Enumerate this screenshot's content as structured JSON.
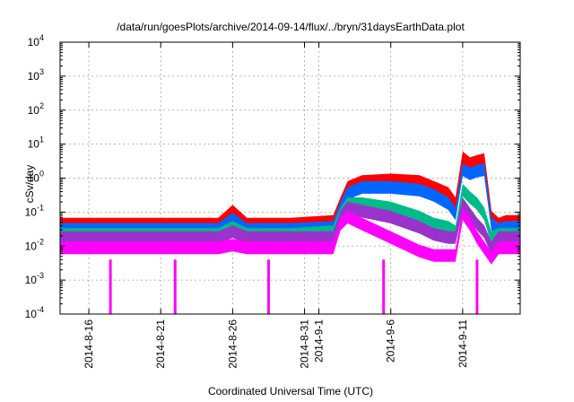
{
  "chart_data": {
    "type": "line",
    "title": "/data/run/goesPlots/archive/2014-09-14/flux/../bryn/31daysEarthData.plot",
    "xlabel": "Coordinated Universal Time (UTC)",
    "ylabel": "cSv/day",
    "y_scale": "log",
    "ylim": [
      0.0001,
      10000
    ],
    "y_ticks": [
      {
        "base": "10",
        "exp": "-4",
        "value": 0.0001
      },
      {
        "base": "10",
        "exp": "-3",
        "value": 0.001
      },
      {
        "base": "10",
        "exp": "-2",
        "value": 0.01
      },
      {
        "base": "10",
        "exp": "-1",
        "value": 0.1
      },
      {
        "base": "10",
        "exp": "0",
        "value": 1
      },
      {
        "base": "10",
        "exp": "1",
        "value": 10
      },
      {
        "base": "10",
        "exp": "2",
        "value": 100
      },
      {
        "base": "10",
        "exp": "3",
        "value": 1000
      },
      {
        "base": "10",
        "exp": "4",
        "value": 10000
      }
    ],
    "xlim": [
      "2014-08-14",
      "2014-09-15"
    ],
    "x_ticks": [
      {
        "label": "2014-8-16",
        "date": "2014-08-16"
      },
      {
        "label": "2014-8-21",
        "date": "2014-08-21"
      },
      {
        "label": "2014-8-26",
        "date": "2014-08-26"
      },
      {
        "label": "2014-8-31",
        "date": "2014-08-31"
      },
      {
        "label": "2014-9-1",
        "date": "2014-09-01"
      },
      {
        "label": "2014-9-6",
        "date": "2014-09-06"
      },
      {
        "label": "2014-9-11",
        "date": "2014-09-11"
      }
    ],
    "grid": true,
    "series": [
      {
        "color": "#ff0000",
        "x": [
          "2014-08-14",
          "2014-08-18",
          "2014-08-22",
          "2014-08-25",
          "2014-08-26",
          "2014-08-27",
          "2014-08-30",
          "2014-09-02",
          "2014-09-02T12",
          "2014-09-03",
          "2014-09-04",
          "2014-09-06",
          "2014-09-08",
          "2014-09-09",
          "2014-09-10",
          "2014-09-10T12",
          "2014-09-11",
          "2014-09-11T12",
          "2014-09-12",
          "2014-09-12T12",
          "2014-09-13",
          "2014-09-13T12",
          "2014-09-14",
          "2014-09-15"
        ],
        "y": [
          0.05,
          0.05,
          0.05,
          0.05,
          0.12,
          0.05,
          0.05,
          0.06,
          0.2,
          0.6,
          0.9,
          1.0,
          0.9,
          0.6,
          0.4,
          0.2,
          4.5,
          3.0,
          3.5,
          4.0,
          0.08,
          0.05,
          0.06,
          0.06
        ]
      },
      {
        "color": "#0066ff",
        "x": [
          "2014-08-14",
          "2014-08-18",
          "2014-08-22",
          "2014-08-25",
          "2014-08-26",
          "2014-08-27",
          "2014-08-30",
          "2014-09-02",
          "2014-09-02T12",
          "2014-09-03",
          "2014-09-04",
          "2014-09-06",
          "2014-09-08",
          "2014-09-09",
          "2014-09-10",
          "2014-09-10T12",
          "2014-09-11",
          "2014-09-11T12",
          "2014-09-12",
          "2014-09-12T12",
          "2014-09-13",
          "2014-09-13T12",
          "2014-09-14",
          "2014-09-15"
        ],
        "y": [
          0.035,
          0.035,
          0.035,
          0.035,
          0.07,
          0.035,
          0.035,
          0.04,
          0.15,
          0.4,
          0.6,
          0.6,
          0.5,
          0.35,
          0.2,
          0.1,
          2.0,
          1.5,
          1.8,
          2.0,
          0.05,
          0.035,
          0.04,
          0.04
        ]
      },
      {
        "color": "#00bb88",
        "x": [
          "2014-08-14",
          "2014-08-18",
          "2014-08-22",
          "2014-08-25",
          "2014-08-26",
          "2014-08-27",
          "2014-08-30",
          "2014-09-02",
          "2014-09-02T12",
          "2014-09-03",
          "2014-09-04",
          "2014-09-06",
          "2014-09-08",
          "2014-09-09",
          "2014-09-10",
          "2014-09-10T12",
          "2014-09-11",
          "2014-09-11T12",
          "2014-09-12",
          "2014-09-12T12",
          "2014-09-13",
          "2014-09-13T12",
          "2014-09-14",
          "2014-09-15"
        ],
        "y": [
          0.025,
          0.025,
          0.025,
          0.025,
          0.04,
          0.025,
          0.025,
          0.03,
          0.1,
          0.2,
          0.2,
          0.15,
          0.08,
          0.05,
          0.04,
          0.03,
          0.5,
          0.3,
          0.2,
          0.1,
          0.02,
          0.025,
          0.025,
          0.025
        ]
      },
      {
        "color": "#9933cc",
        "x": [
          "2014-08-14",
          "2014-08-18",
          "2014-08-22",
          "2014-08-25",
          "2014-08-26",
          "2014-08-27",
          "2014-08-30",
          "2014-09-02",
          "2014-09-02T12",
          "2014-09-03",
          "2014-09-04",
          "2014-09-06",
          "2014-09-08",
          "2014-09-09",
          "2014-09-10",
          "2014-09-10T12",
          "2014-09-11",
          "2014-09-11T12",
          "2014-09-12",
          "2014-09-12T12",
          "2014-09-13",
          "2014-09-13T12",
          "2014-09-14",
          "2014-09-15"
        ],
        "y": [
          0.02,
          0.02,
          0.02,
          0.02,
          0.03,
          0.02,
          0.02,
          0.02,
          0.08,
          0.15,
          0.12,
          0.08,
          0.04,
          0.025,
          0.02,
          0.02,
          0.2,
          0.1,
          0.05,
          0.03,
          0.01,
          0.02,
          0.02,
          0.02
        ]
      },
      {
        "color": "#ff00ff",
        "x": [
          "2014-08-14",
          "2014-08-18",
          "2014-08-22",
          "2014-08-25",
          "2014-08-26",
          "2014-08-27",
          "2014-08-30",
          "2014-09-02",
          "2014-09-02T12",
          "2014-09-03",
          "2014-09-04",
          "2014-09-06",
          "2014-09-08",
          "2014-09-09",
          "2014-09-10",
          "2014-09-10T12",
          "2014-09-11",
          "2014-09-11T12",
          "2014-09-12",
          "2014-09-12T12",
          "2014-09-13",
          "2014-09-13T12",
          "2014-09-14",
          "2014-09-15"
        ],
        "y": [
          0.01,
          0.01,
          0.01,
          0.01,
          0.012,
          0.01,
          0.01,
          0.01,
          0.05,
          0.08,
          0.05,
          0.02,
          0.008,
          0.006,
          0.006,
          0.006,
          0.1,
          0.05,
          0.02,
          0.01,
          0.005,
          0.01,
          0.01,
          0.01
        ]
      }
    ],
    "dropouts": [
      "2014-08-17T12",
      "2014-08-22",
      "2014-08-28T12",
      "2014-09-05T12",
      "2014-09-12"
    ]
  }
}
